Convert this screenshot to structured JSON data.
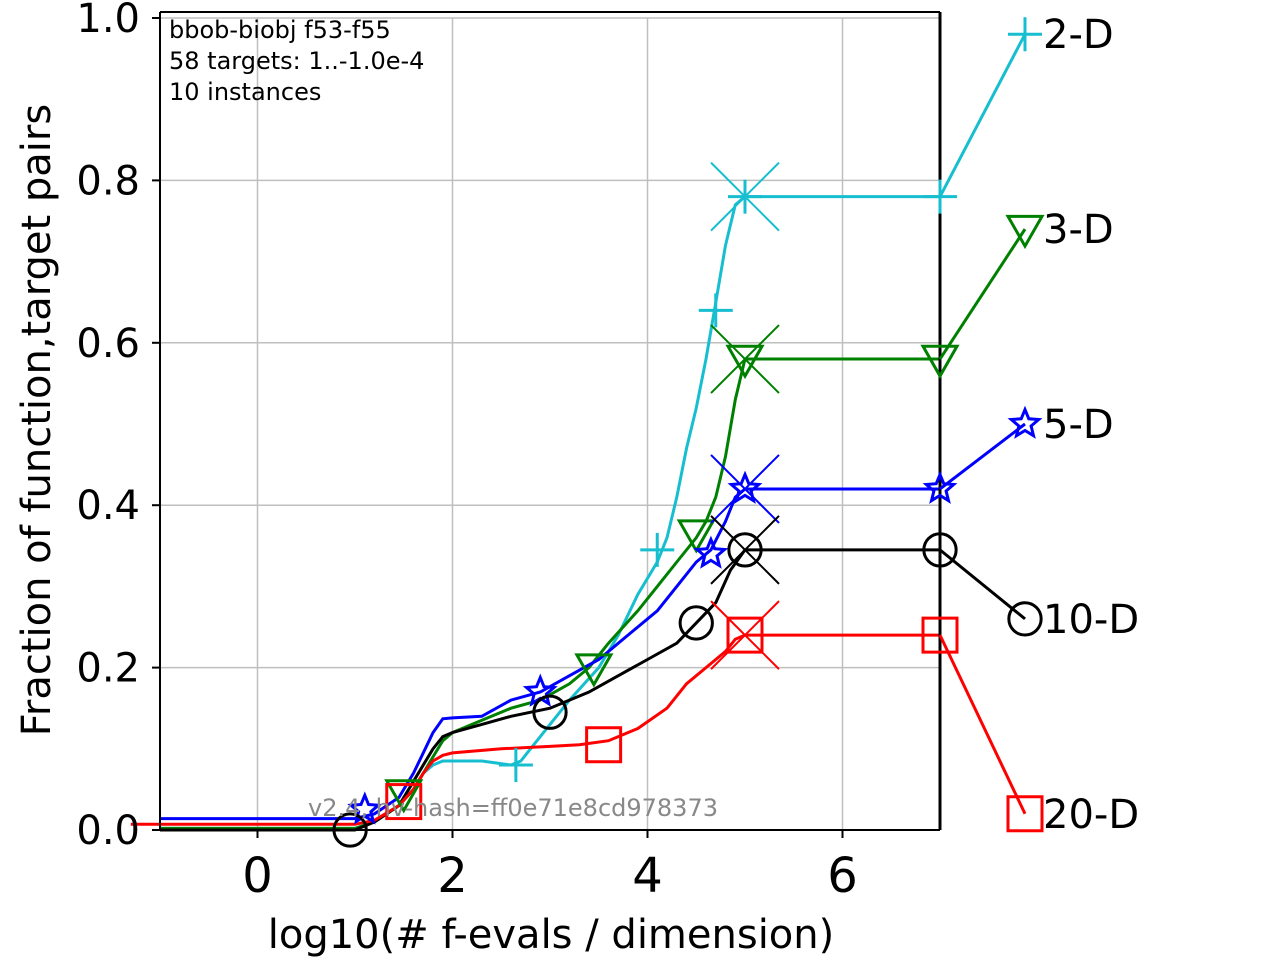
{
  "chart_data": {
    "type": "line",
    "title": "",
    "xlabel": "log10(# f-evals / dimension)",
    "ylabel": "Fraction of function,target pairs",
    "xlim": [
      -1.0,
      7.0
    ],
    "ylim": [
      0.0,
      1.0
    ],
    "x_ticks": [
      "0",
      "2",
      "4",
      "6"
    ],
    "y_ticks": [
      "0.0",
      "0.2",
      "0.4",
      "0.6",
      "0.8",
      "1.0"
    ],
    "grid": true,
    "info_lines": [
      "bbob-biobj f53-f55",
      "58 targets: 1..-1.0e-4",
      "10 instances"
    ],
    "watermark": "v2.4, hv-hash=ff0e71e8cd978373",
    "max_budget_x": 7.0,
    "series": [
      {
        "name": "2-D",
        "color": "#17becf",
        "marker": "plus",
        "points": [
          [
            -1.0,
            0.002
          ],
          [
            1.0,
            0.002
          ],
          [
            1.2,
            0.01
          ],
          [
            1.45,
            0.03
          ],
          [
            1.6,
            0.05
          ],
          [
            1.7,
            0.07
          ],
          [
            1.8,
            0.08
          ],
          [
            1.9,
            0.085
          ],
          [
            2.0,
            0.085
          ],
          [
            2.3,
            0.085
          ],
          [
            2.6,
            0.08
          ],
          [
            2.7,
            0.085
          ],
          [
            2.8,
            0.1
          ],
          [
            3.0,
            0.13
          ],
          [
            3.2,
            0.16
          ],
          [
            3.5,
            0.2
          ],
          [
            3.7,
            0.24
          ],
          [
            3.9,
            0.29
          ],
          [
            4.1,
            0.33
          ],
          [
            4.2,
            0.36
          ],
          [
            4.3,
            0.41
          ],
          [
            4.4,
            0.47
          ],
          [
            4.5,
            0.52
          ],
          [
            4.6,
            0.58
          ],
          [
            4.7,
            0.65
          ],
          [
            4.8,
            0.72
          ],
          [
            4.9,
            0.77
          ],
          [
            5.0,
            0.78
          ],
          [
            7.0,
            0.78
          ]
        ],
        "markers": [
          [
            2.65,
            0.08
          ],
          [
            4.1,
            0.345
          ],
          [
            4.7,
            0.64
          ]
        ],
        "final_marker": [
          5.0,
          0.78
        ],
        "label_value": 0.98
      },
      {
        "name": "3-D",
        "color": "#008000",
        "marker": "triangle-down",
        "points": [
          [
            -1.0,
            0.002
          ],
          [
            1.0,
            0.002
          ],
          [
            1.2,
            0.01
          ],
          [
            1.45,
            0.03
          ],
          [
            1.6,
            0.05
          ],
          [
            1.7,
            0.07
          ],
          [
            1.8,
            0.09
          ],
          [
            1.9,
            0.11
          ],
          [
            2.0,
            0.12
          ],
          [
            2.2,
            0.13
          ],
          [
            2.4,
            0.14
          ],
          [
            2.6,
            0.15
          ],
          [
            2.9,
            0.16
          ],
          [
            3.2,
            0.18
          ],
          [
            3.4,
            0.2
          ],
          [
            3.6,
            0.23
          ],
          [
            3.9,
            0.27
          ],
          [
            4.1,
            0.3
          ],
          [
            4.3,
            0.33
          ],
          [
            4.5,
            0.36
          ],
          [
            4.6,
            0.38
          ],
          [
            4.7,
            0.41
          ],
          [
            4.8,
            0.46
          ],
          [
            4.9,
            0.53
          ],
          [
            5.0,
            0.58
          ],
          [
            7.0,
            0.58
          ]
        ],
        "markers": [
          [
            1.5,
            0.045
          ],
          [
            3.45,
            0.2
          ],
          [
            4.5,
            0.365
          ]
        ],
        "final_marker": [
          5.0,
          0.58
        ],
        "label_value": 0.74
      },
      {
        "name": "5-D",
        "color": "#0000ff",
        "marker": "star",
        "points": [
          [
            -1.0,
            0.014
          ],
          [
            1.0,
            0.014
          ],
          [
            1.2,
            0.02
          ],
          [
            1.45,
            0.04
          ],
          [
            1.6,
            0.07
          ],
          [
            1.8,
            0.12
          ],
          [
            1.9,
            0.137
          ],
          [
            2.0,
            0.138
          ],
          [
            2.3,
            0.14
          ],
          [
            2.6,
            0.16
          ],
          [
            2.9,
            0.17
          ],
          [
            3.2,
            0.19
          ],
          [
            3.5,
            0.21
          ],
          [
            3.8,
            0.24
          ],
          [
            4.1,
            0.27
          ],
          [
            4.3,
            0.3
          ],
          [
            4.5,
            0.33
          ],
          [
            4.65,
            0.345
          ],
          [
            4.8,
            0.38
          ],
          [
            4.9,
            0.41
          ],
          [
            5.0,
            0.42
          ],
          [
            7.0,
            0.42
          ]
        ],
        "markers": [
          [
            1.1,
            0.025
          ],
          [
            2.9,
            0.17
          ],
          [
            4.65,
            0.34
          ]
        ],
        "final_marker": [
          5.0,
          0.42
        ],
        "label_value": 0.5
      },
      {
        "name": "10-D",
        "color": "#000000",
        "marker": "circle",
        "points": [
          [
            -1.0,
            0.0
          ],
          [
            1.0,
            0.0
          ],
          [
            1.2,
            0.01
          ],
          [
            1.45,
            0.03
          ],
          [
            1.6,
            0.06
          ],
          [
            1.8,
            0.1
          ],
          [
            1.9,
            0.115
          ],
          [
            2.0,
            0.12
          ],
          [
            2.3,
            0.13
          ],
          [
            2.6,
            0.14
          ],
          [
            3.0,
            0.15
          ],
          [
            3.4,
            0.17
          ],
          [
            3.7,
            0.19
          ],
          [
            4.0,
            0.21
          ],
          [
            4.3,
            0.23
          ],
          [
            4.5,
            0.255
          ],
          [
            4.7,
            0.28
          ],
          [
            4.85,
            0.32
          ],
          [
            5.0,
            0.345
          ],
          [
            7.0,
            0.345
          ]
        ],
        "markers": [
          [
            0.95,
            0.0
          ],
          [
            3.0,
            0.145
          ],
          [
            4.5,
            0.255
          ]
        ],
        "final_marker": [
          5.0,
          0.345
        ],
        "label_value": 0.26
      },
      {
        "name": "20-D",
        "color": "#ff0000",
        "marker": "square",
        "points": [
          [
            -1.3,
            0.007
          ],
          [
            1.0,
            0.007
          ],
          [
            1.2,
            0.012
          ],
          [
            1.45,
            0.03
          ],
          [
            1.6,
            0.05
          ],
          [
            1.7,
            0.07
          ],
          [
            1.8,
            0.085
          ],
          [
            1.9,
            0.092
          ],
          [
            2.0,
            0.095
          ],
          [
            2.5,
            0.1
          ],
          [
            3.0,
            0.103
          ],
          [
            3.3,
            0.105
          ],
          [
            3.6,
            0.11
          ],
          [
            3.9,
            0.125
          ],
          [
            4.2,
            0.15
          ],
          [
            4.4,
            0.18
          ],
          [
            4.6,
            0.2
          ],
          [
            4.8,
            0.22
          ],
          [
            4.9,
            0.235
          ],
          [
            5.0,
            0.24
          ],
          [
            7.0,
            0.24
          ]
        ],
        "markers": [
          [
            1.5,
            0.035
          ],
          [
            3.55,
            0.105
          ]
        ],
        "final_marker": [
          5.0,
          0.24
        ],
        "label_value": 0.02
      }
    ]
  }
}
